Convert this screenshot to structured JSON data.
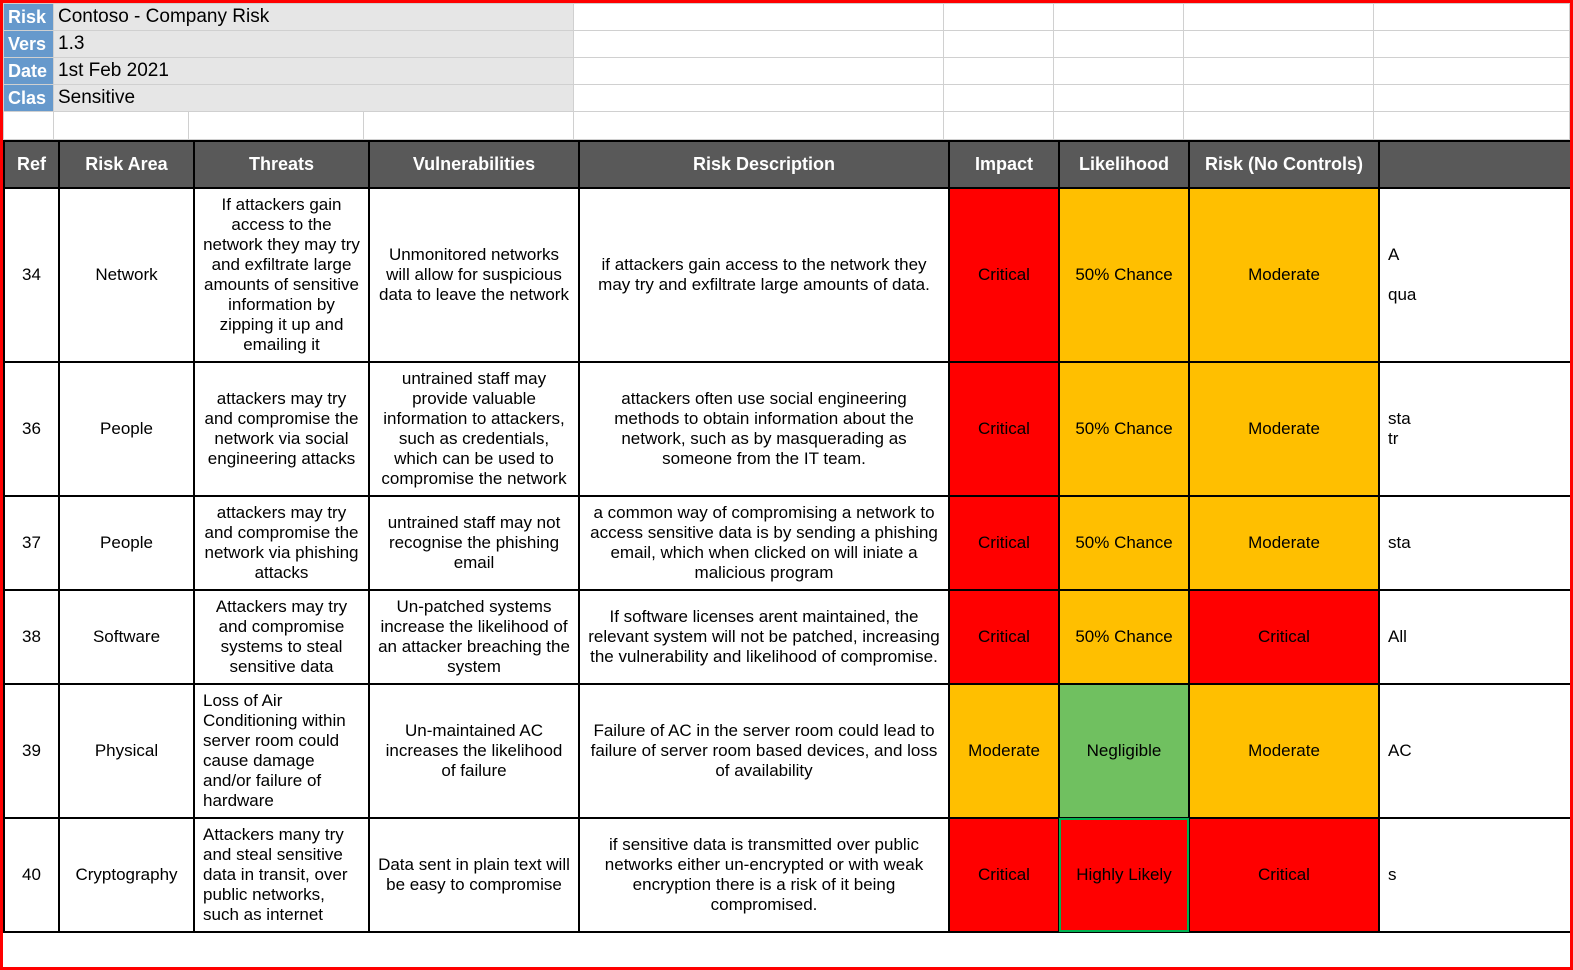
{
  "meta": {
    "labels": {
      "risk": "Risk",
      "vers": "Vers",
      "date": "Date",
      "clas": "Clas"
    },
    "values": {
      "risk": "Contoso - Company Risk",
      "vers": "1.3",
      "date": "1st Feb 2021",
      "clas": "Sensitive"
    }
  },
  "palette": {
    "header_bg": "#595959",
    "header_fg": "#ffffff",
    "meta_label_bg": "#6699cc",
    "meta_value_bg": "#e6e6e6",
    "grid_border": "#d0d0d0",
    "critical": "#ff0000",
    "moderate": "#ffbf00",
    "negligible": "#70c060",
    "frame_border": "#ff0000"
  },
  "columns": [
    "Ref",
    "Risk Area",
    "Threats",
    "Vulnerabilities",
    "Risk Description",
    "Impact",
    "Likelihood",
    "Risk (No Controls)",
    ""
  ],
  "rows": [
    {
      "ref": "34",
      "area": "Network",
      "threat": "If attackers gain access to the network they may try and exfiltrate large amounts of sensitive information by zipping it up and emailing it",
      "vuln": "Unmonitored networks will allow for suspicious data to leave the network",
      "desc": "if attackers gain access to the network they may try and exfiltrate large amounts of data.",
      "impact": {
        "text": "Critical",
        "bg": "#ff0000"
      },
      "likelihood": {
        "text": "50% Chance",
        "bg": "#ffbf00"
      },
      "risknc": {
        "text": "Moderate",
        "bg": "#ffbf00"
      },
      "overflow": "A\n\nqua"
    },
    {
      "ref": "36",
      "area": "People",
      "threat": "attackers may try and compromise the network via social engineering attacks",
      "vuln": "untrained staff may provide valuable information to attackers, such as credentials, which can be used to compromise the network",
      "desc": "attackers often use social engineering methods to obtain information about the network, such as by masquerading as someone from the IT team.",
      "impact": {
        "text": "Critical",
        "bg": "#ff0000"
      },
      "likelihood": {
        "text": "50% Chance",
        "bg": "#ffbf00"
      },
      "risknc": {
        "text": "Moderate",
        "bg": "#ffbf00"
      },
      "overflow": "sta\ntr"
    },
    {
      "ref": "37",
      "area": "People",
      "threat": "attackers may try and compromise the network via phishing attacks",
      "vuln": "untrained staff may not recognise the phishing email",
      "desc": "a common way of compromising a network to access sensitive data is by sending a phishing email, which when clicked on will iniate a malicious program",
      "impact": {
        "text": "Critical",
        "bg": "#ff0000"
      },
      "likelihood": {
        "text": "50% Chance",
        "bg": "#ffbf00"
      },
      "risknc": {
        "text": "Moderate",
        "bg": "#ffbf00"
      },
      "overflow": "sta"
    },
    {
      "ref": "38",
      "area": "Software",
      "threat": "Attackers may try and compromise systems to steal sensitive data",
      "vuln": "Un-patched systems increase the likelihood of an attacker breaching the system",
      "desc": "If software licenses arent maintained, the relevant system will not be patched, increasing the vulnerability and likelihood of compromise.",
      "impact": {
        "text": "Critical",
        "bg": "#ff0000"
      },
      "likelihood": {
        "text": "50% Chance",
        "bg": "#ffbf00"
      },
      "risknc": {
        "text": "Critical",
        "bg": "#ff0000"
      },
      "overflow": "All"
    },
    {
      "ref": "39",
      "area": "Physical",
      "threat": "Loss of Air Conditioning within server room could cause damage and/or failure of hardware",
      "threat_align": "left",
      "vuln": "Un-maintained AC increases the likelihood of failure",
      "desc": "Failure of AC in the server room could lead to failure of server room based devices, and loss of availability",
      "impact": {
        "text": "Moderate",
        "bg": "#ffbf00"
      },
      "likelihood": {
        "text": "Negligible",
        "bg": "#70c060"
      },
      "risknc": {
        "text": "Moderate",
        "bg": "#ffbf00"
      },
      "overflow": "AC"
    },
    {
      "ref": "40",
      "area": "Cryptography",
      "threat": "Attackers many try and steal sensitive data in transit, over public networks, such as internet",
      "threat_align": "left",
      "vuln": "Data sent in plain text will be easy to compromise",
      "desc": "if sensitive data is transmitted over public networks either un-encrypted or with weak encryption there is a risk of it being compromised.",
      "impact": {
        "text": "Critical",
        "bg": "#ff0000"
      },
      "likelihood": {
        "text": "Highly Likely",
        "bg": "#ff0000",
        "selected": true
      },
      "risknc": {
        "text": "Critical",
        "bg": "#ff0000"
      },
      "overflow": "s"
    }
  ]
}
